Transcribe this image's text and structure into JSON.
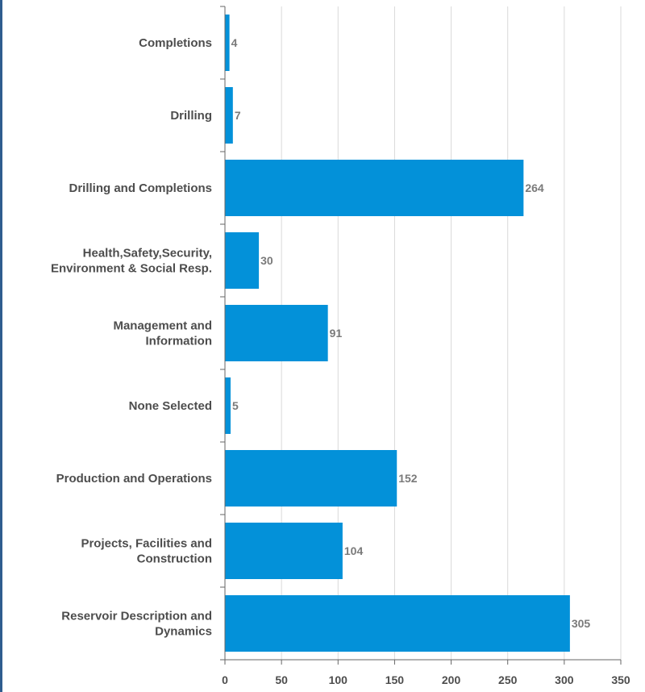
{
  "chart_data": {
    "type": "bar",
    "orientation": "horizontal",
    "categories": [
      [
        "Completions"
      ],
      [
        "Drilling"
      ],
      [
        "Drilling and Completions"
      ],
      [
        "Health,Safety,Security,",
        "Environment & Social Resp."
      ],
      [
        "Management and",
        "Information"
      ],
      [
        "None Selected"
      ],
      [
        "Production and Operations"
      ],
      [
        "Projects, Facilities and",
        "Construction"
      ],
      [
        "Reservoir Description and",
        "Dynamics"
      ]
    ],
    "values": [
      4,
      7,
      264,
      30,
      91,
      5,
      152,
      104,
      305
    ],
    "data_labels": [
      "4",
      "7",
      "264",
      "30",
      "91",
      "5",
      "152",
      "104",
      "305"
    ],
    "xlim": [
      0,
      350
    ],
    "x_ticks": [
      0,
      50,
      100,
      150,
      200,
      250,
      300,
      350
    ],
    "x_tick_labels": [
      "0",
      "50",
      "100",
      "150",
      "200",
      "250",
      "300",
      "350"
    ],
    "grid": true,
    "bar_color": "#0391d9",
    "legend": "none",
    "title": "",
    "xlabel": "",
    "ylabel": ""
  }
}
